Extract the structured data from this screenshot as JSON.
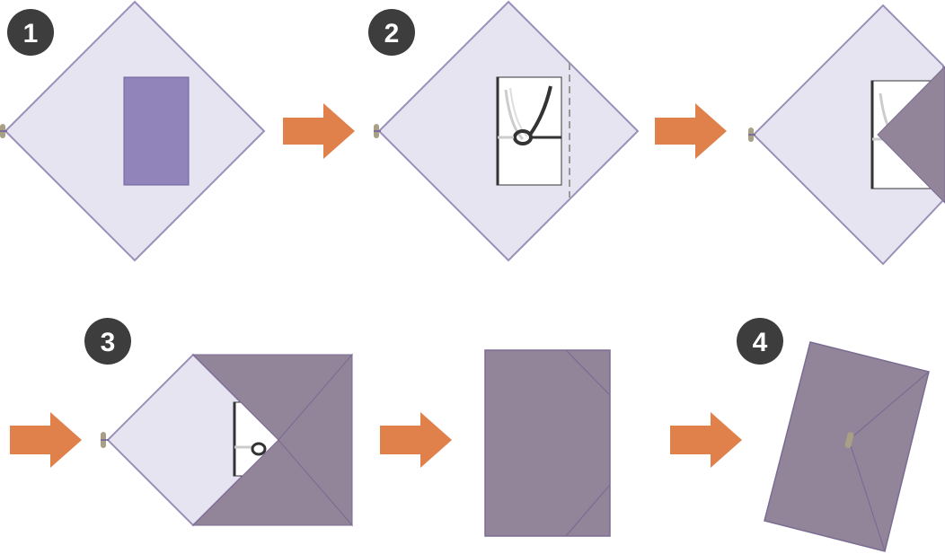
{
  "steps": [
    {
      "number": "1"
    },
    {
      "number": "2"
    },
    {
      "number": "3"
    },
    {
      "number": "4"
    }
  ],
  "colors": {
    "cloth": "#e6e4f0",
    "cloth_edge": "#9a8fb8",
    "fold": "#928499",
    "fold_edge": "#7a6c92",
    "envelope_purple": "#9184bb",
    "arrow": "#e0804a",
    "badge": "#3d3d3d",
    "tassel": "#a89f86",
    "paper": "#ffffff",
    "cord": "#333333",
    "dashed_line": "#999999"
  }
}
